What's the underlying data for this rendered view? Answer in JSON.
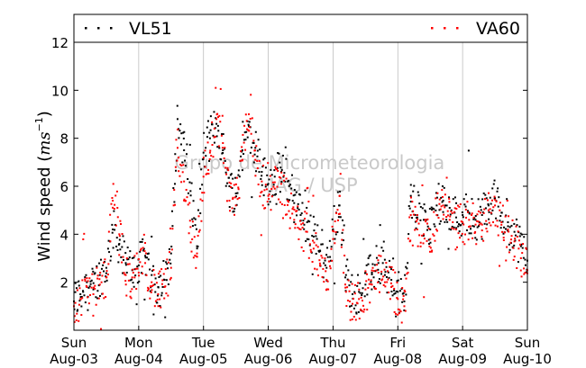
{
  "chart_data": {
    "type": "scatter",
    "ylabel_text": "Wind speed (",
    "ylabel_math": "ms",
    "ylabel_exp": "−1",
    "ylabel_close": ")",
    "watermark": [
      "Grupo de Micrometeorologia",
      "IAG / USP"
    ],
    "ylim": [
      0,
      12
    ],
    "yticks": [
      2,
      4,
      6,
      8,
      10,
      12
    ],
    "xlim": [
      0,
      7
    ],
    "xticks": [
      {
        "day": "Sun",
        "date": "Aug-03"
      },
      {
        "day": "Mon",
        "date": "Aug-04"
      },
      {
        "day": "Tue",
        "date": "Aug-05"
      },
      {
        "day": "Wed",
        "date": "Aug-06"
      },
      {
        "day": "Thu",
        "date": "Aug-07"
      },
      {
        "day": "Fri",
        "date": "Aug-08"
      },
      {
        "day": "Sat",
        "date": "Aug-09"
      },
      {
        "day": "Sun",
        "date": "Aug-10"
      }
    ],
    "grid": "vertical",
    "legend_position": "top",
    "series": [
      {
        "name": "VL51",
        "color": "#000000",
        "marker": "square-dot",
        "x": [
          0.0,
          0.1,
          0.2,
          0.3,
          0.4,
          0.5,
          0.6,
          0.7,
          0.8,
          0.9,
          1.0,
          1.1,
          1.2,
          1.3,
          1.4,
          1.5,
          1.6,
          1.7,
          1.8,
          1.9,
          2.0,
          2.1,
          2.2,
          2.3,
          2.4,
          2.5,
          2.6,
          2.7,
          2.8,
          2.9,
          3.0,
          3.1,
          3.2,
          3.3,
          3.4,
          3.5,
          3.6,
          3.7,
          3.8,
          3.9,
          4.0,
          4.1,
          4.2,
          4.3,
          4.4,
          4.5,
          4.6,
          4.7,
          4.8,
          4.9,
          5.0,
          5.1,
          5.2,
          5.3,
          5.4,
          5.5,
          5.6,
          5.7,
          5.8,
          5.9,
          6.0,
          6.1,
          6.2,
          6.3,
          6.4,
          6.5,
          6.6,
          6.7,
          6.8,
          6.9,
          7.0
        ],
        "y": [
          1.2,
          1.5,
          2.0,
          1.7,
          2.3,
          2.6,
          4.2,
          3.6,
          2.8,
          2.5,
          2.7,
          3.1,
          2.3,
          1.8,
          2.1,
          3.2,
          8.8,
          7.5,
          5.8,
          3.5,
          7.4,
          8.0,
          8.6,
          7.5,
          6.0,
          5.7,
          7.5,
          8.5,
          7.6,
          6.6,
          6.1,
          6.4,
          6.6,
          6.2,
          5.3,
          4.8,
          4.5,
          3.9,
          3.3,
          2.6,
          4.2,
          5.2,
          2.3,
          1.5,
          1.6,
          1.9,
          2.4,
          2.8,
          2.3,
          2.1,
          1.6,
          1.2,
          5.6,
          4.8,
          4.6,
          4.2,
          5.2,
          5.4,
          5.1,
          4.7,
          4.8,
          4.9,
          4.6,
          4.8,
          5.2,
          5.5,
          4.9,
          4.5,
          4.1,
          3.5,
          2.9
        ]
      },
      {
        "name": "VA60",
        "color": "#ff0000",
        "marker": "square-dot",
        "x": [
          0.0,
          0.1,
          0.2,
          0.3,
          0.4,
          0.5,
          0.6,
          0.7,
          0.8,
          0.9,
          1.0,
          1.1,
          1.2,
          1.3,
          1.4,
          1.5,
          1.6,
          1.7,
          1.8,
          1.9,
          2.0,
          2.1,
          2.2,
          2.3,
          2.4,
          2.5,
          2.6,
          2.7,
          2.8,
          2.9,
          3.0,
          3.1,
          3.2,
          3.3,
          3.4,
          3.5,
          3.6,
          3.7,
          3.8,
          3.9,
          4.0,
          4.1,
          4.2,
          4.3,
          4.4,
          4.5,
          4.6,
          4.7,
          4.8,
          4.9,
          5.0,
          5.1,
          5.2,
          5.3,
          5.4,
          5.5,
          5.6,
          5.7,
          5.8,
          5.9,
          6.0,
          6.1,
          6.2,
          6.3,
          6.4,
          6.5,
          6.6,
          6.7,
          6.8,
          6.9,
          7.0
        ],
        "y": [
          1.0,
          1.3,
          1.8,
          1.5,
          1.9,
          2.2,
          5.4,
          4.0,
          2.3,
          2.2,
          2.4,
          2.8,
          2.0,
          1.5,
          1.8,
          2.6,
          7.6,
          6.2,
          4.3,
          3.2,
          6.4,
          7.4,
          8.8,
          7.8,
          5.4,
          5.2,
          7.1,
          9.0,
          7.1,
          6.2,
          5.6,
          5.9,
          6.1,
          5.4,
          4.6,
          4.2,
          4.1,
          3.4,
          2.7,
          2.1,
          3.8,
          5.6,
          1.6,
          1.1,
          1.3,
          1.7,
          1.9,
          2.4,
          2.0,
          1.8,
          1.3,
          1.0,
          4.8,
          4.2,
          4.0,
          3.8,
          4.8,
          5.2,
          4.6,
          4.2,
          4.5,
          4.6,
          4.4,
          4.4,
          5.0,
          5.2,
          4.5,
          4.2,
          3.7,
          3.0,
          2.5
        ]
      }
    ]
  }
}
